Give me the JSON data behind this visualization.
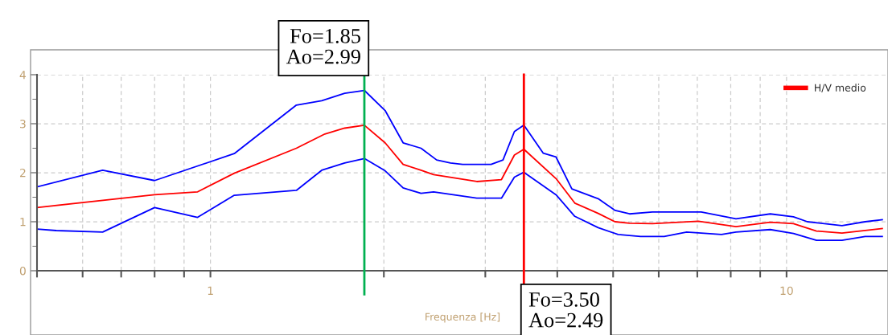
{
  "chart_data": {
    "type": "line",
    "xlabel": "Frequenza [Hz]",
    "log": "x",
    "xlim": [
      0.5,
      15
    ],
    "ylim": [
      0,
      4
    ],
    "xticks": [
      {
        "value": 0.5,
        "label": null
      },
      {
        "value": 0.6,
        "label": null
      },
      {
        "value": 0.7,
        "label": null
      },
      {
        "value": 0.8,
        "label": null
      },
      {
        "value": 0.9,
        "label": null
      },
      1,
      {
        "value": 2,
        "label": null
      },
      {
        "value": 3,
        "label": null
      },
      {
        "value": 4,
        "label": null
      },
      {
        "value": 5,
        "label": null
      },
      {
        "value": 6,
        "label": null
      },
      {
        "value": 7,
        "label": null
      },
      {
        "value": 8,
        "label": null
      },
      {
        "value": 9,
        "label": null
      },
      10
    ],
    "yticks": [
      0,
      {
        "value": 0.5,
        "label": null
      },
      1,
      {
        "value": 1.5,
        "label": null
      },
      2,
      {
        "value": 2.5,
        "label": null
      },
      3,
      {
        "value": 3.5,
        "label": null
      },
      4
    ],
    "grid": true,
    "legend": "top right",
    "line_style": "solid",
    "marker": "none",
    "series": [
      {
        "color": "#0000ff",
        "x": [
          0.5,
          0.65,
          0.8,
          1.1,
          1.41,
          1.56,
          1.71,
          1.85,
          2.01,
          2.16,
          2.32,
          2.47,
          2.61,
          2.74,
          3.07,
          3.22,
          3.37,
          3.5,
          3.78,
          3.98,
          4.24,
          4.71,
          5.04,
          5.34,
          5.85,
          6.71,
          7.11,
          8.17,
          9.37,
          10.28,
          10.87,
          12.48,
          13.69,
          14.66
        ],
        "values": [
          1.71,
          2.05,
          1.84,
          2.39,
          3.38,
          3.47,
          3.62,
          3.68,
          3.27,
          2.61,
          2.5,
          2.26,
          2.2,
          2.17,
          2.17,
          2.26,
          2.84,
          2.97,
          2.4,
          2.32,
          1.67,
          1.47,
          1.23,
          1.16,
          1.2,
          1.2,
          1.2,
          1.06,
          1.16,
          1.1,
          1.0,
          0.92,
          1.0,
          1.04
        ]
      },
      {
        "name": "H/V medio",
        "color": "#ff0000",
        "x": [
          0.5,
          0.8,
          0.95,
          1.1,
          1.41,
          1.58,
          1.71,
          1.85,
          2.01,
          2.16,
          2.32,
          2.44,
          2.9,
          3.2,
          3.37,
          3.5,
          3.98,
          4.29,
          4.71,
          5.04,
          5.34,
          5.85,
          7.03,
          8.17,
          9.37,
          10.28,
          11.27,
          12.48,
          14.66
        ],
        "values": [
          1.29,
          1.55,
          1.61,
          1.99,
          2.5,
          2.79,
          2.91,
          2.97,
          2.61,
          2.17,
          2.05,
          1.96,
          1.82,
          1.86,
          2.36,
          2.48,
          1.88,
          1.38,
          1.17,
          1.0,
          0.97,
          0.96,
          1.01,
          0.9,
          0.99,
          0.96,
          0.81,
          0.77,
          0.86
        ]
      },
      {
        "color": "#0000ff",
        "x": [
          0.5,
          0.54,
          0.65,
          0.8,
          0.95,
          1.1,
          1.41,
          1.56,
          1.71,
          1.85,
          2.01,
          2.16,
          2.32,
          2.44,
          2.9,
          3.2,
          3.37,
          3.5,
          3.98,
          4.29,
          4.71,
          5.1,
          5.58,
          6.13,
          6.71,
          7.71,
          8.17,
          9.37,
          10.28,
          11.27,
          12.48,
          13.69,
          14.66
        ],
        "values": [
          0.85,
          0.82,
          0.79,
          1.29,
          1.09,
          1.54,
          1.64,
          2.05,
          2.2,
          2.29,
          2.04,
          1.69,
          1.58,
          1.61,
          1.48,
          1.48,
          1.91,
          2.01,
          1.55,
          1.11,
          0.88,
          0.74,
          0.7,
          0.7,
          0.79,
          0.74,
          0.79,
          0.84,
          0.76,
          0.62,
          0.62,
          0.7,
          0.7
        ]
      }
    ],
    "ref_lines": [
      {
        "axis": "x",
        "value": 1.85,
        "color": "#00b050",
        "line_style": "solid"
      },
      {
        "axis": "x",
        "value": 3.5,
        "color": "#ff0000",
        "line_style": "solid"
      }
    ],
    "annotations": [
      "Fo=1.85\nAo=2.99",
      "Fo=3.50\nAo=2.49"
    ]
  }
}
